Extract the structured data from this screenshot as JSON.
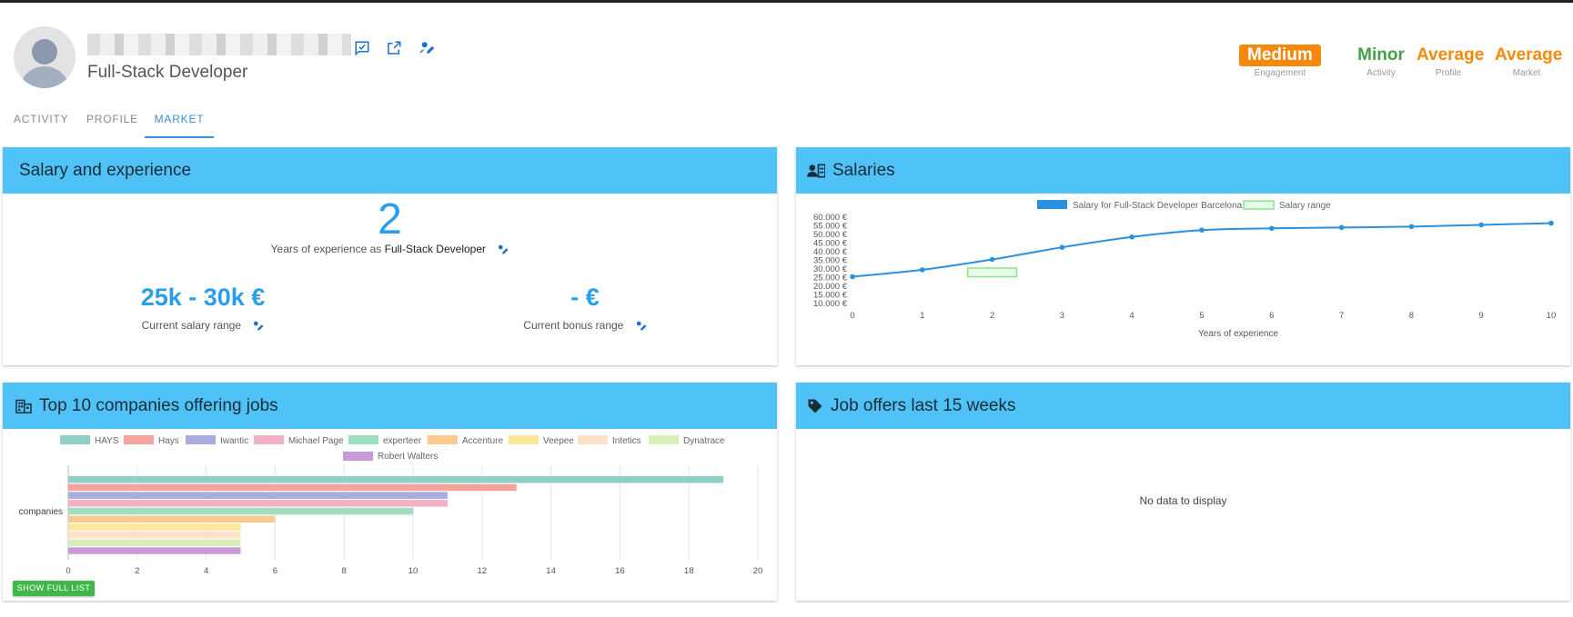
{
  "profile": {
    "title": "Full-Stack Developer",
    "icons": [
      "chat-icon",
      "open-external-icon",
      "edit-person-icon"
    ]
  },
  "badges": [
    {
      "value": "Medium",
      "label": "Engagement",
      "color": "#f5890b",
      "boxed": true
    },
    {
      "value": "Minor",
      "label": "Activity",
      "color": "#43a047",
      "boxed": false
    },
    {
      "value": "Average",
      "label": "Profile",
      "color": "#f5890b",
      "boxed": false
    },
    {
      "value": "Average",
      "label": "Market",
      "color": "#f5890b",
      "boxed": false
    }
  ],
  "tabs": [
    {
      "label": "ACTIVITY",
      "active": false
    },
    {
      "label": "PROFILE",
      "active": false
    },
    {
      "label": "MARKET",
      "active": true
    }
  ],
  "salary_card": {
    "title": "Salary and experience",
    "years": "2",
    "years_prefix": "Years of experience as",
    "years_role": "Full-Stack Developer",
    "salary_value": "25k - 30k €",
    "salary_label": "Current salary range",
    "bonus_value": "- €",
    "bonus_label": "Current bonus range"
  },
  "salaries_card": {
    "title": "Salaries",
    "icon": "salary-contact-icon"
  },
  "companies_card": {
    "title": "Top 10 companies offering jobs",
    "icon": "building-icon",
    "button_label": "SHOW FULL LIST"
  },
  "jobs_card": {
    "title": "Job offers last 15 weeks",
    "icon": "tag-icon",
    "empty_text": "No data to display"
  },
  "chart_data": [
    {
      "type": "line",
      "x": [
        0,
        1,
        2,
        3,
        4,
        5,
        6,
        7,
        8,
        9,
        10
      ],
      "series": [
        {
          "name": "Salary for Full-Stack Developer Barcelona",
          "values": [
            25000,
            29000,
            35000,
            42000,
            48000,
            52000,
            53000,
            53500,
            54000,
            55000,
            56000
          ],
          "color": "#2a90e0"
        },
        {
          "name": "Salary range",
          "type": "range-box",
          "x_range": [
            1.65,
            2.35
          ],
          "y_range": [
            25000,
            30000
          ],
          "color": "#8ee58e"
        }
      ],
      "xticks": [
        "0",
        "1",
        "2",
        "3",
        "4",
        "5",
        "6",
        "7",
        "8",
        "9",
        "10"
      ],
      "yticks": [
        "10.000 €",
        "15.000 €",
        "20.000 €",
        "25.000 €",
        "30.000 €",
        "35.000 €",
        "40.000 €",
        "45.000 €",
        "50.000 €",
        "55.000 €",
        "60.000 €"
      ],
      "xlabel": "Years of experience",
      "ylabel": "",
      "ylim": [
        10000,
        60000
      ],
      "xlim": [
        0,
        10
      ],
      "legend": "top"
    },
    {
      "type": "bar",
      "orientation": "horizontal",
      "categories": [
        "companies"
      ],
      "series": [
        {
          "name": "HAYS",
          "values": [
            19
          ],
          "color": "#8fcfc5"
        },
        {
          "name": "Hays",
          "values": [
            13
          ],
          "color": "#f4a49a"
        },
        {
          "name": "Iwantic",
          "values": [
            11
          ],
          "color": "#a9acde"
        },
        {
          "name": "Michael Page",
          "values": [
            11
          ],
          "color": "#f1b0c6"
        },
        {
          "name": "experteer",
          "values": [
            10
          ],
          "color": "#9ddfbf"
        },
        {
          "name": "Accenture",
          "values": [
            6
          ],
          "color": "#fcc98f"
        },
        {
          "name": "Veepee",
          "values": [
            5
          ],
          "color": "#fde69a"
        },
        {
          "name": "Intetics",
          "values": [
            5
          ],
          "color": "#fde2c8"
        },
        {
          "name": "Dynatrace",
          "values": [
            5
          ],
          "color": "#d9efb8"
        },
        {
          "name": "Robert Walters",
          "values": [
            5
          ],
          "color": "#c99ad9"
        }
      ],
      "xticks": [
        "0",
        "2",
        "4",
        "6",
        "8",
        "10",
        "12",
        "14",
        "16",
        "18",
        "20"
      ],
      "xlim": [
        0,
        20
      ],
      "legend": "top"
    }
  ]
}
